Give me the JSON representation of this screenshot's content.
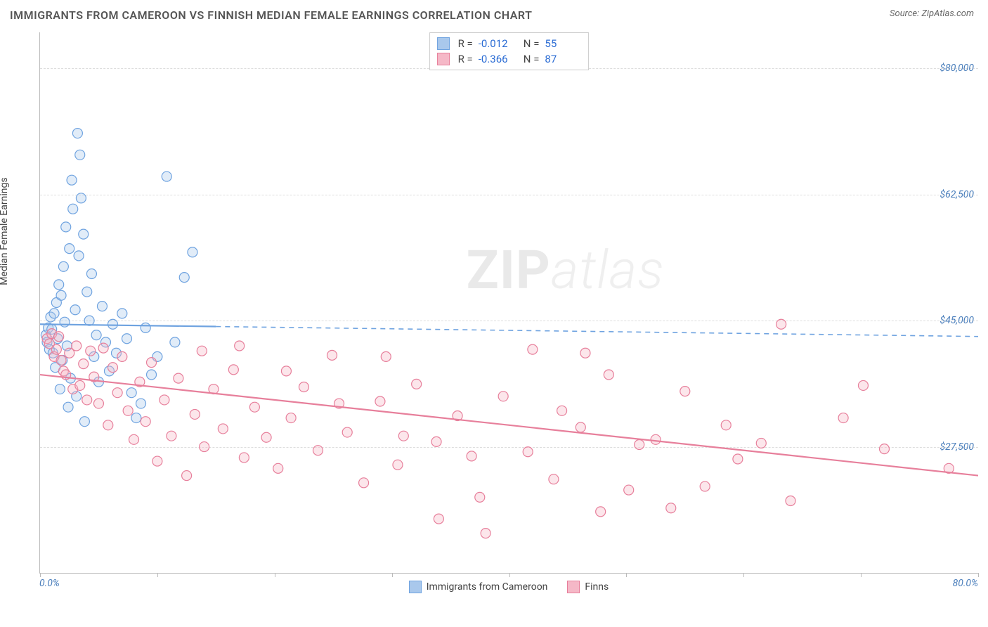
{
  "header": {
    "title": "IMMIGRANTS FROM CAMEROON VS FINNISH MEDIAN FEMALE EARNINGS CORRELATION CHART",
    "source_prefix": "Source: ",
    "source_name": "ZipAtlas.com"
  },
  "watermark": {
    "part1": "ZIP",
    "part2": "atlas"
  },
  "chart": {
    "type": "scatter",
    "ylabel": "Median Female Earnings",
    "xlim": [
      0,
      80
    ],
    "ylim": [
      10000,
      85000
    ],
    "x_ticks_pct": [
      0,
      10,
      20,
      30,
      40,
      50,
      60,
      70,
      80
    ],
    "y_gridlines": [
      27500,
      45000,
      62500,
      80000
    ],
    "y_tick_labels": [
      "$27,500",
      "$45,000",
      "$62,500",
      "$80,000"
    ],
    "x_min_label": "0.0%",
    "x_max_label": "80.0%",
    "background_color": "#ffffff",
    "grid_color": "#dddddd",
    "axis_color": "#bbbbbb",
    "tick_label_color": "#4a7ebb",
    "marker_radius": 7,
    "marker_fill_opacity": 0.35,
    "line_width": 2.2,
    "series": [
      {
        "key": "cameroon",
        "label": "Immigrants from Cameroon",
        "color_stroke": "#6fa3e0",
        "color_fill": "#a9c8ec",
        "r": -0.012,
        "n": 55,
        "trend": {
          "x1": 0,
          "y1": 44500,
          "x2": 80,
          "y2": 42800,
          "solid_until_x": 15
        },
        "points": [
          [
            0.5,
            43000
          ],
          [
            0.6,
            42000
          ],
          [
            0.7,
            44000
          ],
          [
            0.8,
            41000
          ],
          [
            0.9,
            45500
          ],
          [
            1.0,
            43800
          ],
          [
            1.1,
            40500
          ],
          [
            1.2,
            46000
          ],
          [
            1.3,
            38500
          ],
          [
            1.4,
            47500
          ],
          [
            1.5,
            42500
          ],
          [
            1.6,
            50000
          ],
          [
            1.8,
            48500
          ],
          [
            1.9,
            39500
          ],
          [
            2.0,
            52500
          ],
          [
            2.1,
            44800
          ],
          [
            2.2,
            58000
          ],
          [
            2.3,
            41500
          ],
          [
            2.5,
            55000
          ],
          [
            2.6,
            37000
          ],
          [
            2.8,
            60500
          ],
          [
            3.0,
            46500
          ],
          [
            3.1,
            34500
          ],
          [
            3.3,
            54000
          ],
          [
            3.5,
            62000
          ],
          [
            3.2,
            71000
          ],
          [
            3.4,
            68000
          ],
          [
            2.7,
            64500
          ],
          [
            3.7,
            57000
          ],
          [
            4.0,
            49000
          ],
          [
            4.2,
            45000
          ],
          [
            4.4,
            51500
          ],
          [
            4.6,
            40000
          ],
          [
            4.8,
            43000
          ],
          [
            5.0,
            36500
          ],
          [
            5.3,
            47000
          ],
          [
            5.6,
            42000
          ],
          [
            5.9,
            38000
          ],
          [
            6.2,
            44500
          ],
          [
            6.5,
            40500
          ],
          [
            7.0,
            46000
          ],
          [
            7.4,
            42500
          ],
          [
            7.8,
            35000
          ],
          [
            8.2,
            31500
          ],
          [
            8.6,
            33500
          ],
          [
            9.0,
            44000
          ],
          [
            9.5,
            37500
          ],
          [
            10.0,
            40000
          ],
          [
            10.8,
            65000
          ],
          [
            11.5,
            42000
          ],
          [
            12.3,
            51000
          ],
          [
            13.0,
            54500
          ],
          [
            1.7,
            35500
          ],
          [
            2.4,
            33000
          ],
          [
            3.8,
            31000
          ]
        ]
      },
      {
        "key": "finns",
        "label": "Finns",
        "color_stroke": "#e77f9b",
        "color_fill": "#f5b8c7",
        "r": -0.366,
        "n": 87,
        "trend": {
          "x1": 0,
          "y1": 37500,
          "x2": 80,
          "y2": 23500,
          "solid_until_x": 80
        },
        "points": [
          [
            0.6,
            42500
          ],
          [
            0.8,
            41800
          ],
          [
            1.0,
            43200
          ],
          [
            1.2,
            40000
          ],
          [
            1.4,
            41000
          ],
          [
            1.6,
            42800
          ],
          [
            1.8,
            39500
          ],
          [
            2.0,
            38000
          ],
          [
            2.2,
            37500
          ],
          [
            2.5,
            40500
          ],
          [
            2.8,
            35500
          ],
          [
            3.1,
            41500
          ],
          [
            3.4,
            36000
          ],
          [
            3.7,
            39000
          ],
          [
            4.0,
            34000
          ],
          [
            4.3,
            40800
          ],
          [
            4.6,
            37200
          ],
          [
            5.0,
            33500
          ],
          [
            5.4,
            41200
          ],
          [
            5.8,
            30500
          ],
          [
            6.2,
            38500
          ],
          [
            6.6,
            35000
          ],
          [
            7.0,
            40000
          ],
          [
            7.5,
            32500
          ],
          [
            8.0,
            28500
          ],
          [
            8.5,
            36500
          ],
          [
            9.0,
            31000
          ],
          [
            9.5,
            39200
          ],
          [
            10.0,
            25500
          ],
          [
            10.6,
            34000
          ],
          [
            11.2,
            29000
          ],
          [
            11.8,
            37000
          ],
          [
            12.5,
            23500
          ],
          [
            13.2,
            32000
          ],
          [
            14.0,
            27500
          ],
          [
            14.8,
            35500
          ],
          [
            15.6,
            30000
          ],
          [
            16.5,
            38200
          ],
          [
            17.4,
            26000
          ],
          [
            18.3,
            33000
          ],
          [
            19.3,
            28800
          ],
          [
            20.3,
            24500
          ],
          [
            21.4,
            31500
          ],
          [
            22.5,
            35800
          ],
          [
            23.7,
            27000
          ],
          [
            24.9,
            40200
          ],
          [
            26.2,
            29500
          ],
          [
            27.6,
            22500
          ],
          [
            29.0,
            33800
          ],
          [
            30.5,
            25000
          ],
          [
            32.1,
            36200
          ],
          [
            33.8,
            28200
          ],
          [
            35.6,
            31800
          ],
          [
            37.5,
            20500
          ],
          [
            39.5,
            34500
          ],
          [
            41.6,
            26800
          ],
          [
            38.0,
            15500
          ],
          [
            42.0,
            41000
          ],
          [
            43.8,
            23000
          ],
          [
            46.1,
            30200
          ],
          [
            48.5,
            37500
          ],
          [
            51.1,
            27800
          ],
          [
            53.8,
            19000
          ],
          [
            56.7,
            22000
          ],
          [
            61.5,
            28000
          ],
          [
            68.5,
            31500
          ],
          [
            72.0,
            27200
          ],
          [
            77.5,
            24500
          ],
          [
            63.2,
            44500
          ],
          [
            46.5,
            40500
          ],
          [
            34.0,
            17500
          ],
          [
            29.5,
            40000
          ],
          [
            17.0,
            41500
          ],
          [
            13.8,
            40800
          ],
          [
            21.0,
            38000
          ],
          [
            25.5,
            33500
          ],
          [
            31.0,
            29000
          ],
          [
            36.8,
            26200
          ],
          [
            44.5,
            32500
          ],
          [
            50.2,
            21500
          ],
          [
            55.0,
            35200
          ],
          [
            58.5,
            30500
          ],
          [
            64.0,
            20000
          ],
          [
            70.2,
            36000
          ],
          [
            47.8,
            18500
          ],
          [
            52.5,
            28500
          ],
          [
            59.5,
            25800
          ]
        ]
      }
    ],
    "top_legend_labels": {
      "r_prefix": "R = ",
      "n_prefix": "N = "
    }
  }
}
